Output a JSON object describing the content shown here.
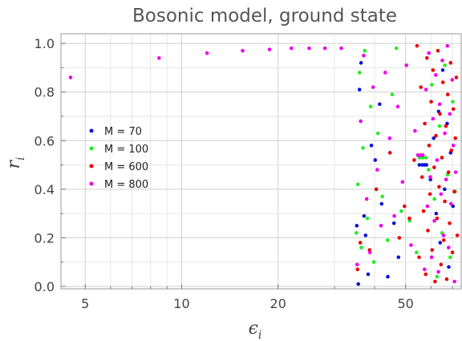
{
  "chart_data": {
    "type": "scatter",
    "title": "Bosonic model, ground state",
    "xlabel": "ϵ",
    "xlabel_sub": "i",
    "ylabel": "r",
    "ylabel_sub": "i",
    "xscale": "log",
    "xlim": [
      4.2,
      75
    ],
    "ylim": [
      -0.01,
      1.04
    ],
    "x_ticks": [
      5,
      10,
      20,
      50
    ],
    "y_ticks": [
      0.0,
      0.2,
      0.4,
      0.6,
      0.8,
      1.0
    ],
    "y_tick_labels": [
      "0.0",
      "0.2",
      "0.4",
      "0.6",
      "0.8",
      "1.0"
    ],
    "grid": true,
    "legend_position": "center-left",
    "series": [
      {
        "name": "M = 70",
        "color": "#0a14d9",
        "points": [
          [
            35.2,
            0.25
          ],
          [
            35.6,
            0.01
          ],
          [
            35.9,
            0.81
          ],
          [
            36.3,
            0.92
          ],
          [
            37.1,
            0.29
          ],
          [
            37.5,
            0.21
          ],
          [
            38.2,
            0.05
          ],
          [
            39.1,
            0.58
          ],
          [
            40.2,
            0.52
          ],
          [
            41.5,
            0.75
          ],
          [
            42.1,
            0.34
          ],
          [
            44.0,
            0.04
          ],
          [
            46.0,
            0.26
          ],
          [
            47.5,
            0.12
          ],
          [
            55.2,
            0.5
          ],
          [
            56.4,
            0.5
          ],
          [
            57.3,
            0.5
          ],
          [
            58.1,
            0.5
          ],
          [
            59.8,
            0.44
          ],
          [
            61.2,
            0.61
          ],
          [
            62.3,
            0.3
          ],
          [
            63.4,
            0.72
          ],
          [
            64.1,
            0.18
          ],
          [
            65.3,
            0.89
          ],
          [
            66.2,
            0.4
          ],
          [
            67.4,
            0.67
          ],
          [
            68.2,
            0.08
          ],
          [
            69.1,
            0.55
          ],
          [
            70.3,
            0.33
          ]
        ]
      },
      {
        "name": "M = 100",
        "color": "#22ee22",
        "points": [
          [
            35.1,
            0.22
          ],
          [
            35.5,
            0.42
          ],
          [
            35.9,
            0.88
          ],
          [
            36.4,
            0.16
          ],
          [
            36.8,
            0.57
          ],
          [
            37.3,
            0.97
          ],
          [
            38.0,
            0.28
          ],
          [
            38.9,
            0.74
          ],
          [
            39.8,
            0.1
          ],
          [
            41.0,
            0.63
          ],
          [
            42.3,
            0.37
          ],
          [
            43.9,
            0.19
          ],
          [
            45.4,
            0.79
          ],
          [
            46.8,
            0.98
          ],
          [
            48.5,
            0.31
          ],
          [
            51.5,
            0.27
          ],
          [
            54.1,
            0.14
          ],
          [
            55.3,
            0.53
          ],
          [
            56.6,
            0.53
          ],
          [
            57.9,
            0.53
          ],
          [
            59.0,
            0.48
          ],
          [
            60.4,
            0.83
          ],
          [
            61.5,
            0.36
          ],
          [
            62.7,
            0.04
          ],
          [
            63.8,
            0.66
          ],
          [
            65.0,
            0.22
          ],
          [
            66.3,
            0.91
          ],
          [
            67.6,
            0.46
          ],
          [
            68.9,
            0.12
          ],
          [
            70.2,
            0.76
          ],
          [
            71.4,
            0.39
          ]
        ]
      },
      {
        "name": "M = 600",
        "color": "#ee0000",
        "points": [
          [
            35.4,
            0.07
          ],
          [
            36.1,
            0.18
          ],
          [
            38.6,
            0.15
          ],
          [
            40.5,
            0.4
          ],
          [
            44.7,
            0.55
          ],
          [
            47.8,
            0.2
          ],
          [
            49.6,
            0.33
          ],
          [
            51.4,
            0.28
          ],
          [
            53.2,
            0.52
          ],
          [
            54.3,
            0.99
          ],
          [
            55.1,
            0.12
          ],
          [
            55.8,
            0.82
          ],
          [
            56.3,
            0.45
          ],
          [
            56.9,
            0.31
          ],
          [
            57.4,
            0.67
          ],
          [
            57.8,
            0.05
          ],
          [
            58.3,
            0.94
          ],
          [
            58.7,
            0.23
          ],
          [
            59.2,
            0.58
          ],
          [
            59.6,
            0.38
          ],
          [
            60.1,
            0.76
          ],
          [
            60.5,
            0.15
          ],
          [
            60.9,
            0.89
          ],
          [
            61.4,
            0.49
          ],
          [
            61.8,
            0.02
          ],
          [
            62.2,
            0.62
          ],
          [
            62.7,
            0.28
          ],
          [
            63.1,
            0.97
          ],
          [
            63.6,
            0.41
          ],
          [
            64.0,
            0.71
          ],
          [
            64.5,
            0.09
          ],
          [
            64.9,
            0.53
          ],
          [
            65.4,
            0.84
          ],
          [
            65.8,
            0.19
          ],
          [
            66.3,
            0.35
          ],
          [
            66.8,
            0.66
          ],
          [
            67.2,
            0.03
          ],
          [
            67.7,
            0.79
          ],
          [
            68.1,
            0.47
          ],
          [
            68.6,
            0.26
          ],
          [
            69.1,
            0.92
          ],
          [
            69.5,
            0.56
          ],
          [
            70.0,
            0.14
          ],
          [
            70.5,
            0.73
          ],
          [
            71.0,
            0.39
          ],
          [
            71.5,
            0.61
          ],
          [
            72.0,
            0.86
          ],
          [
            72.5,
            0.21
          ]
        ]
      },
      {
        "name": "M = 800",
        "color": "#ee00ee",
        "points": [
          [
            4.5,
            0.86
          ],
          [
            8.5,
            0.94
          ],
          [
            12.0,
            0.96
          ],
          [
            15.5,
            0.97
          ],
          [
            18.8,
            0.975
          ],
          [
            22.0,
            0.98
          ],
          [
            25.0,
            0.98
          ],
          [
            28.0,
            0.98
          ],
          [
            31.5,
            0.98
          ],
          [
            35.3,
            0.09
          ],
          [
            36.2,
            0.68
          ],
          [
            37.0,
            0.95
          ],
          [
            37.8,
            0.36
          ],
          [
            38.7,
            0.14
          ],
          [
            39.6,
            0.82
          ],
          [
            40.8,
            0.48
          ],
          [
            41.9,
            0.25
          ],
          [
            43.2,
            0.88
          ],
          [
            44.6,
            0.61
          ],
          [
            46.1,
            0.29
          ],
          [
            47.3,
            0.74
          ],
          [
            48.9,
            0.43
          ],
          [
            50.3,
            0.91
          ],
          [
            52.0,
            0.17
          ],
          [
            53.5,
            0.64
          ],
          [
            54.6,
            0.54
          ],
          [
            55.2,
            0.54
          ],
          [
            55.9,
            0.54
          ],
          [
            56.6,
            0.54
          ],
          [
            57.3,
            0.07
          ],
          [
            57.9,
            0.81
          ],
          [
            58.5,
            0.33
          ],
          [
            59.1,
            0.96
          ],
          [
            59.7,
            0.45
          ],
          [
            60.3,
            0.12
          ],
          [
            60.9,
            0.69
          ],
          [
            61.5,
            0.27
          ],
          [
            62.1,
            0.87
          ],
          [
            62.7,
            0.52
          ],
          [
            63.3,
            0.06
          ],
          [
            63.9,
            0.75
          ],
          [
            64.5,
            0.38
          ],
          [
            65.1,
            0.93
          ],
          [
            65.7,
            0.21
          ],
          [
            66.3,
            0.63
          ],
          [
            66.9,
            0.44
          ],
          [
            67.5,
            0.99
          ],
          [
            68.1,
            0.16
          ],
          [
            68.7,
            0.71
          ],
          [
            69.3,
            0.34
          ],
          [
            69.9,
            0.85
          ],
          [
            70.5,
            0.58
          ],
          [
            71.1,
            0.02
          ],
          [
            71.7,
            0.47
          ]
        ]
      }
    ]
  }
}
